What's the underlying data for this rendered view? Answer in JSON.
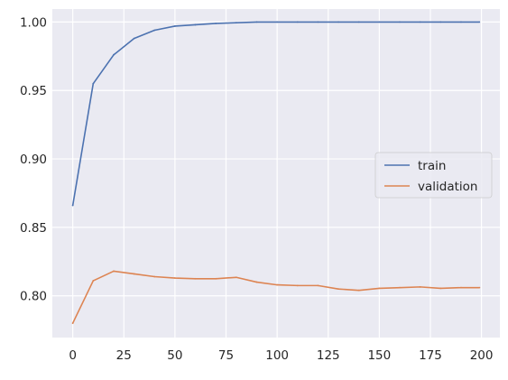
{
  "chart_data": {
    "type": "line",
    "title": "",
    "xlabel": "",
    "ylabel": "",
    "xlim": [
      -10,
      209
    ],
    "ylim": [
      0.7695,
      1.0095
    ],
    "x_ticks": [
      0,
      25,
      50,
      75,
      100,
      125,
      150,
      175,
      200
    ],
    "y_ticks": [
      0.8,
      0.85,
      0.9,
      0.95,
      1.0
    ],
    "y_tick_labels": [
      "0.80",
      "0.85",
      "0.90",
      "0.95",
      "1.00"
    ],
    "grid": true,
    "background": "#eaeaf2",
    "legend": {
      "placement": "center-right"
    },
    "series": [
      {
        "name": "train",
        "color": "#4c72b0",
        "x": [
          0,
          10,
          20,
          30,
          40,
          50,
          60,
          70,
          80,
          90,
          100,
          110,
          120,
          130,
          140,
          150,
          160,
          170,
          180,
          190,
          199
        ],
        "values": [
          0.866,
          0.955,
          0.976,
          0.988,
          0.994,
          0.997,
          0.998,
          0.999,
          0.9995,
          1.0,
          1.0,
          1.0,
          1.0,
          1.0,
          1.0,
          1.0,
          1.0,
          1.0,
          1.0,
          1.0,
          1.0
        ]
      },
      {
        "name": "validation",
        "color": "#dd8452",
        "x": [
          0,
          10,
          20,
          30,
          40,
          50,
          60,
          70,
          80,
          90,
          100,
          110,
          120,
          130,
          140,
          150,
          160,
          170,
          180,
          190,
          199
        ],
        "values": [
          0.78,
          0.811,
          0.818,
          0.816,
          0.814,
          0.813,
          0.8125,
          0.8125,
          0.8135,
          0.81,
          0.808,
          0.8075,
          0.8075,
          0.805,
          0.804,
          0.8055,
          0.806,
          0.8065,
          0.8055,
          0.806,
          0.806
        ]
      }
    ]
  }
}
